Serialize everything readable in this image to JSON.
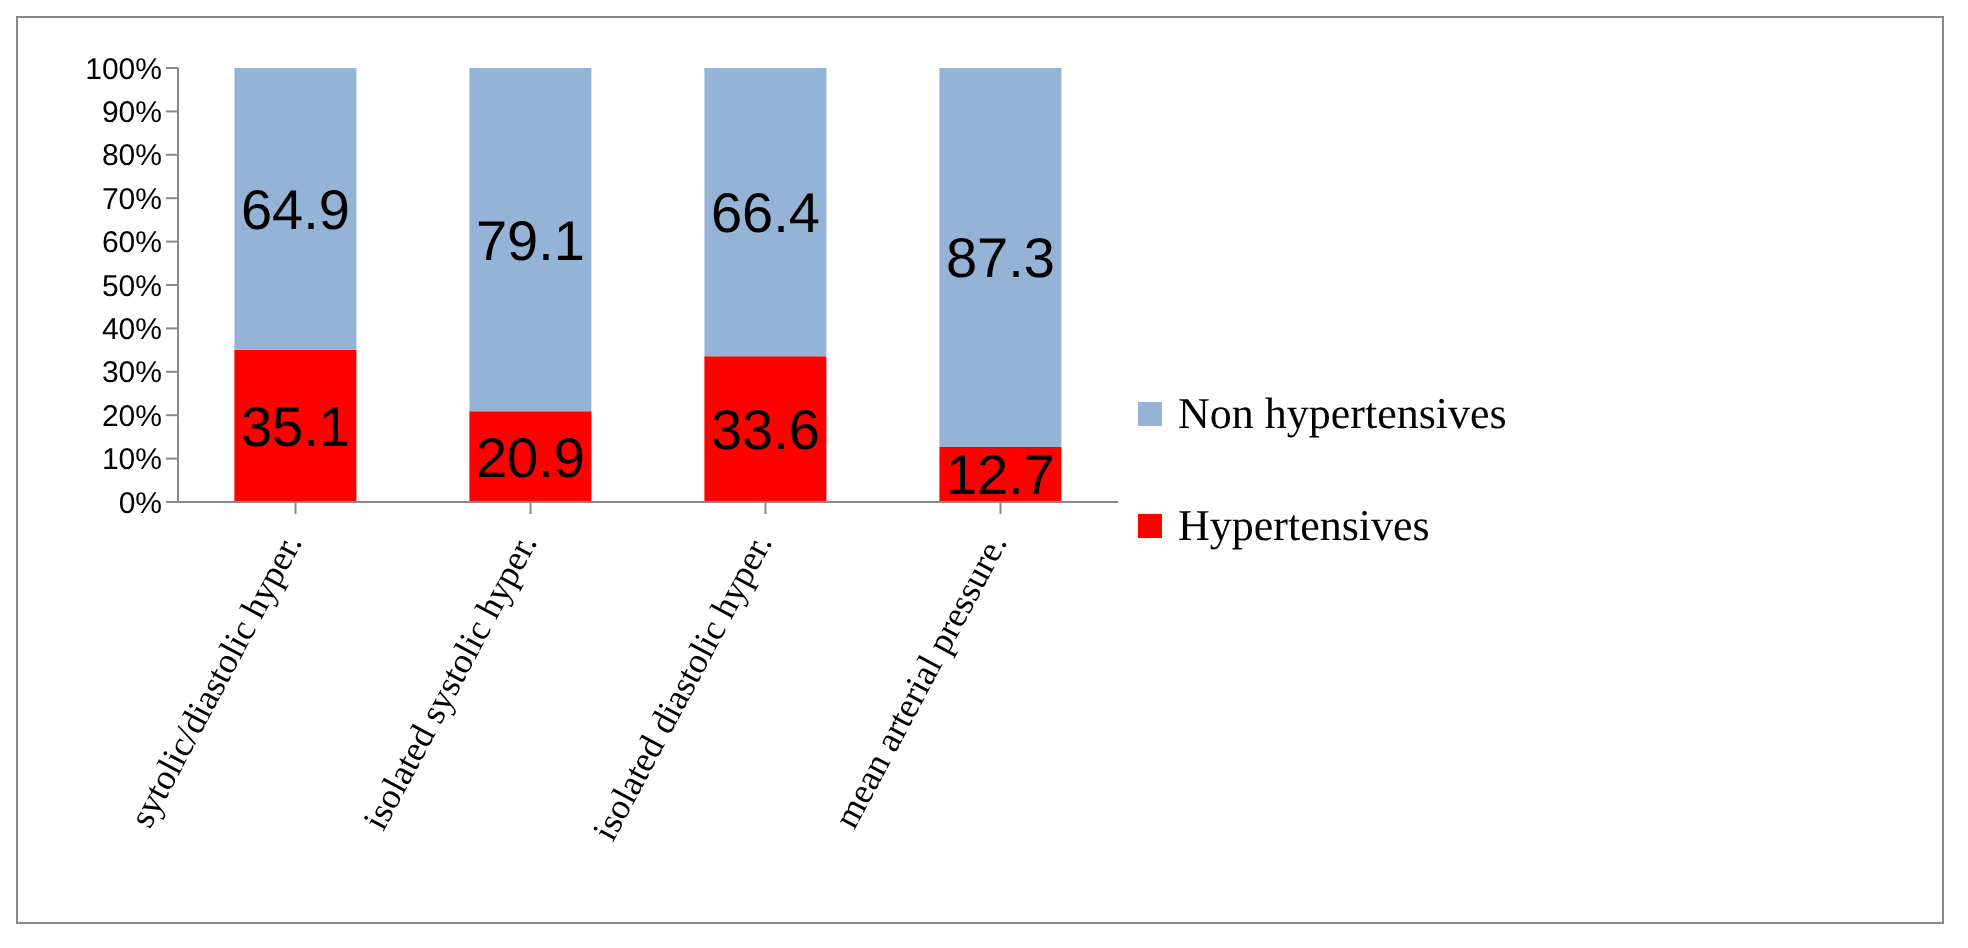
{
  "chart_data": {
    "type": "bar",
    "stacked": true,
    "categories": [
      "sytolic/diastolic hyper.",
      "isolated systolic hyper.",
      "isolated diastolic hyper.",
      "mean arterial pressure."
    ],
    "series": [
      {
        "name": "Hypertensives",
        "color": "#ff0000",
        "values": [
          35.1,
          20.9,
          33.6,
          12.7
        ]
      },
      {
        "name": "Non hypertensives",
        "color": "#95b3d7",
        "values": [
          64.9,
          79.1,
          66.4,
          87.3
        ]
      }
    ],
    "data_labels": true,
    "ylim": [
      0,
      100
    ],
    "yticks": [
      {
        "value": 0,
        "label": "0%"
      },
      {
        "value": 10,
        "label": "10%"
      },
      {
        "value": 20,
        "label": "20%"
      },
      {
        "value": 30,
        "label": "30%"
      },
      {
        "value": 40,
        "label": "40%"
      },
      {
        "value": 50,
        "label": "50%"
      },
      {
        "value": 60,
        "label": "60%"
      },
      {
        "value": 70,
        "label": "70%"
      },
      {
        "value": 80,
        "label": "80%"
      },
      {
        "value": 90,
        "label": "90%"
      },
      {
        "value": 100,
        "label": "100%"
      }
    ],
    "grid": false,
    "legend": "right"
  }
}
